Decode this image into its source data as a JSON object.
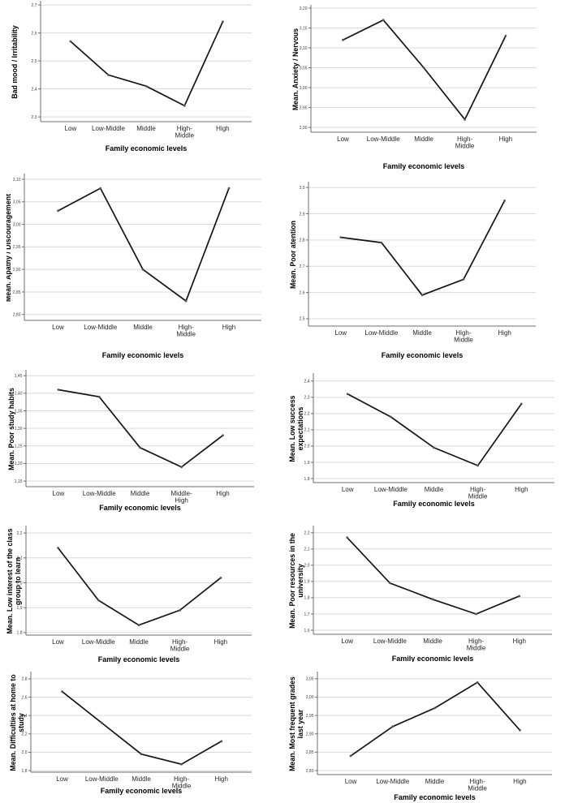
{
  "figure": {
    "xlabel": "Family economic levels",
    "style": {
      "background": "#ffffff",
      "line_color": "#141414",
      "marker_color": "#555555",
      "grid_color": "#d9d9d9",
      "axis_color": "#6e6e6e",
      "ytick_color": "#3d3d3d",
      "xtick_color": "#262626",
      "label_color": "#000000"
    }
  },
  "chart_data": [
    {
      "type": "line",
      "ylabel": "Bad mood / Irritability",
      "xlabel": "Family economic levels",
      "categories": [
        "Low",
        "Low-Middle",
        "Middle",
        "High-\nMiddle",
        "High"
      ],
      "values": [
        2.57,
        2.45,
        2.41,
        2.34,
        2.64
      ],
      "yticks": [
        2.3,
        2.4,
        2.5,
        2.6,
        2.7
      ],
      "ytick_labels": [
        "2,3",
        "2,4",
        "2,5",
        "2,6",
        "2,7"
      ],
      "ylim": [
        2.283,
        2.709
      ],
      "grid": true,
      "legend": false
    },
    {
      "type": "line",
      "ylabel": "Mean. Anxiety / Nervous",
      "xlabel": "Family economic levels",
      "categories": [
        "Low",
        "Low-Middle",
        "Middle",
        "High-\nMiddle",
        "High"
      ],
      "values": [
        3.12,
        3.17,
        3.05,
        2.92,
        3.13
      ],
      "yticks": [
        2.9,
        2.95,
        3.0,
        3.05,
        3.1,
        3.15,
        3.2
      ],
      "ytick_labels": [
        "2,90",
        "2,95",
        "3,00",
        "3,05",
        "3,10",
        "3,15",
        "3,20"
      ],
      "ylim": [
        2.888,
        3.204
      ],
      "grid": true,
      "legend": false
    },
    {
      "type": "line",
      "ylabel": "Mean. Apathy / Discouragement",
      "xlabel": "Family economic levels",
      "categories": [
        "Low",
        "Low-Middle",
        "Middle",
        "High-\nMiddle",
        "High"
      ],
      "values": [
        3.03,
        3.08,
        2.9,
        2.83,
        3.08
      ],
      "yticks": [
        2.8,
        2.85,
        2.9,
        2.95,
        3.0,
        3.05,
        3.1
      ],
      "ytick_labels": [
        "2,80",
        "2,85",
        "2,90",
        "2,95",
        "3,00",
        "3,05",
        "3,10"
      ],
      "ylim": [
        2.787,
        3.109
      ],
      "grid": true,
      "legend": false
    },
    {
      "type": "line",
      "ylabel": "Mean. Poor atention",
      "xlabel": "Family economic levels",
      "categories": [
        "Low",
        "Low-Middle",
        "Middle",
        "High-\nMiddle",
        "High"
      ],
      "values": [
        2.81,
        2.79,
        2.59,
        2.65,
        2.95
      ],
      "yticks": [
        2.5,
        2.6,
        2.7,
        2.8,
        2.9,
        3.0
      ],
      "ytick_labels": [
        "2,5",
        "2,6",
        "2,7",
        "2,8",
        "2,9",
        "3,0"
      ],
      "ylim": [
        2.472,
        3.016
      ],
      "grid": true,
      "legend": false
    },
    {
      "type": "line",
      "ylabel": "Mean. Poor study habits",
      "xlabel": "Family economic levels",
      "categories": [
        "Low",
        "Low-Middle",
        "Middle",
        "Middle-\nHigh",
        "High"
      ],
      "values": [
        1.41,
        1.39,
        1.245,
        1.19,
        1.28
      ],
      "yticks": [
        1.15,
        1.2,
        1.25,
        1.3,
        1.35,
        1.4,
        1.45
      ],
      "ytick_labels": [
        "1,15",
        "1,20",
        "1,25",
        "1,30",
        "1,35",
        "1,40",
        "1,45"
      ],
      "ylim": [
        1.134,
        1.462
      ],
      "grid": true,
      "legend": false
    },
    {
      "type": "line",
      "ylabel": "Mean. Low success\nexpectations",
      "xlabel": "Family economic levels",
      "categories": [
        "Low",
        "Low-Middle",
        "Middle",
        "High-\nMiddle",
        "High"
      ],
      "values": [
        2.32,
        2.18,
        1.99,
        1.88,
        2.26
      ],
      "yticks": [
        1.8,
        1.9,
        2.0,
        2.1,
        2.2,
        2.3,
        2.4
      ],
      "ytick_labels": [
        "1,8",
        "1,9",
        "2,0",
        "2,1",
        "2,2",
        "2,3",
        "2,4"
      ],
      "ylim": [
        1.775,
        2.439
      ],
      "grid": true,
      "legend": false
    },
    {
      "type": "line",
      "ylabel": "Mean. Low interest of the class\ngroup to learn",
      "xlabel": "Family economic levels",
      "categories": [
        "Low",
        "Low-Middle",
        "Middle",
        "High-\nMiddle",
        "High"
      ],
      "values": [
        2.14,
        1.93,
        1.83,
        1.89,
        2.02
      ],
      "yticks": [
        1.8,
        1.9,
        2.0,
        2.1,
        2.2
      ],
      "ytick_labels": [
        "1,8",
        "1,9",
        "2,0",
        "2,1",
        "2,2"
      ],
      "ylim": [
        1.79,
        2.223
      ],
      "grid": true,
      "legend": false
    },
    {
      "type": "line",
      "ylabel": "Mean. Poor resources in the\nuniversity",
      "xlabel": "Family economic levels",
      "categories": [
        "Low",
        "Low-Middle",
        "Middle",
        "High-\nMiddle",
        "High"
      ],
      "values": [
        2.17,
        1.89,
        1.79,
        1.7,
        1.81
      ],
      "yticks": [
        1.6,
        1.7,
        1.8,
        1.9,
        2.0,
        2.1,
        2.2
      ],
      "ytick_labels": [
        "1,6",
        "1,7",
        "1,8",
        "1,9",
        "2,0",
        "2,1",
        "2,2"
      ],
      "ylim": [
        1.575,
        2.234
      ],
      "grid": true,
      "legend": false
    },
    {
      "type": "line",
      "ylabel": "Mean. Difficulties at home to\nstudy",
      "xlabel": "Family economic levels",
      "categories": [
        "Low",
        "Low-Middle",
        "Middle",
        "High-\nMiddle",
        "High"
      ],
      "values": [
        2.66,
        2.32,
        1.98,
        1.87,
        2.12
      ],
      "yticks": [
        1.8,
        2.0,
        2.2,
        2.4,
        2.6,
        2.8
      ],
      "ytick_labels": [
        "1,8",
        "2,0",
        "2,2",
        "2,4",
        "2,6",
        "2,8"
      ],
      "ylim": [
        1.783,
        2.861
      ],
      "grid": true,
      "legend": false
    },
    {
      "type": "line",
      "ylabel": "Mean. Most frequent grades\nlast year",
      "xlabel": "Family economic levels",
      "categories": [
        "Low",
        "Low-Middle",
        "Middle",
        "High-\nMiddle",
        "High"
      ],
      "values": [
        2.84,
        2.92,
        2.97,
        3.04,
        2.91
      ],
      "yticks": [
        2.8,
        2.85,
        2.9,
        2.95,
        3.0,
        3.05
      ],
      "ytick_labels": [
        "2,80",
        "2,85",
        "2,90",
        "2,95",
        "3,00",
        "3,05"
      ],
      "ylim": [
        2.789,
        3.065
      ],
      "grid": true,
      "legend": false
    }
  ]
}
